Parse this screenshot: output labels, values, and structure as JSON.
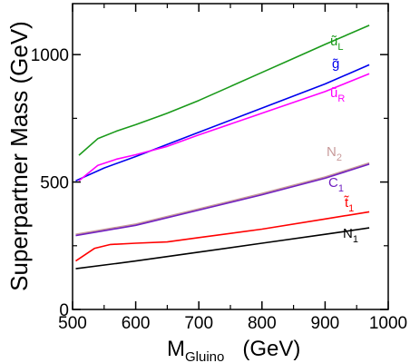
{
  "chart_data": {
    "type": "line",
    "title": "",
    "xlabel": {
      "main": "M",
      "sub": "Gluino",
      "unit": "(GeV)"
    },
    "ylabel": "Superpartner Mass  (GeV)",
    "xlim": [
      500,
      1000
    ],
    "ylim": [
      0,
      1200
    ],
    "xticks": [
      500,
      600,
      700,
      800,
      900,
      1000
    ],
    "yticks": [
      0,
      500,
      1000
    ],
    "grid": false,
    "legend": "inline labels at right end of each curve",
    "series": [
      {
        "name": "ũL",
        "label": {
          "main": "ũ",
          "sub": "L"
        },
        "color": "#1a9a1a",
        "points": [
          [
            510,
            605
          ],
          [
            540,
            670
          ],
          [
            570,
            700
          ],
          [
            600,
            725
          ],
          [
            650,
            770
          ],
          [
            700,
            820
          ],
          [
            750,
            875
          ],
          [
            800,
            930
          ],
          [
            850,
            985
          ],
          [
            900,
            1040
          ],
          [
            970,
            1115
          ]
        ]
      },
      {
        "name": "g̃",
        "label": {
          "main": "g̃",
          "sub": ""
        },
        "color": "#0000ee",
        "points": [
          [
            505,
            505
          ],
          [
            550,
            555
          ],
          [
            600,
            600
          ],
          [
            700,
            695
          ],
          [
            800,
            790
          ],
          [
            900,
            885
          ],
          [
            970,
            960
          ]
        ]
      },
      {
        "name": "ũR",
        "label": {
          "main": "ũ",
          "sub": "R"
        },
        "color": "#ff00ff",
        "points": [
          [
            510,
            505
          ],
          [
            540,
            565
          ],
          [
            570,
            590
          ],
          [
            600,
            607
          ],
          [
            650,
            640
          ],
          [
            700,
            685
          ],
          [
            800,
            770
          ],
          [
            900,
            855
          ],
          [
            970,
            925
          ]
        ]
      },
      {
        "name": "N2",
        "label": {
          "main": "N",
          "sub": "2"
        },
        "color": "#c89a9a",
        "points": [
          [
            505,
            295
          ],
          [
            600,
            335
          ],
          [
            700,
            395
          ],
          [
            800,
            455
          ],
          [
            900,
            520
          ],
          [
            970,
            575
          ]
        ]
      },
      {
        "name": "C1",
        "label": {
          "main": "C",
          "sub": "1"
        },
        "color": "#7020c0",
        "points": [
          [
            505,
            290
          ],
          [
            600,
            330
          ],
          [
            700,
            390
          ],
          [
            800,
            450
          ],
          [
            900,
            515
          ],
          [
            970,
            570
          ]
        ]
      },
      {
        "name": "t̃1",
        "label": {
          "main": "t̃",
          "sub": "1"
        },
        "color": "#ff0000",
        "points": [
          [
            505,
            190
          ],
          [
            535,
            240
          ],
          [
            560,
            255
          ],
          [
            600,
            260
          ],
          [
            650,
            265
          ],
          [
            700,
            282
          ],
          [
            800,
            315
          ],
          [
            900,
            355
          ],
          [
            970,
            383
          ]
        ]
      },
      {
        "name": "N1",
        "label": {
          "main": "N",
          "sub": "1"
        },
        "color": "#000000",
        "points": [
          [
            505,
            160
          ],
          [
            600,
            190
          ],
          [
            700,
            225
          ],
          [
            800,
            260
          ],
          [
            900,
            295
          ],
          [
            970,
            320
          ]
        ]
      }
    ]
  }
}
